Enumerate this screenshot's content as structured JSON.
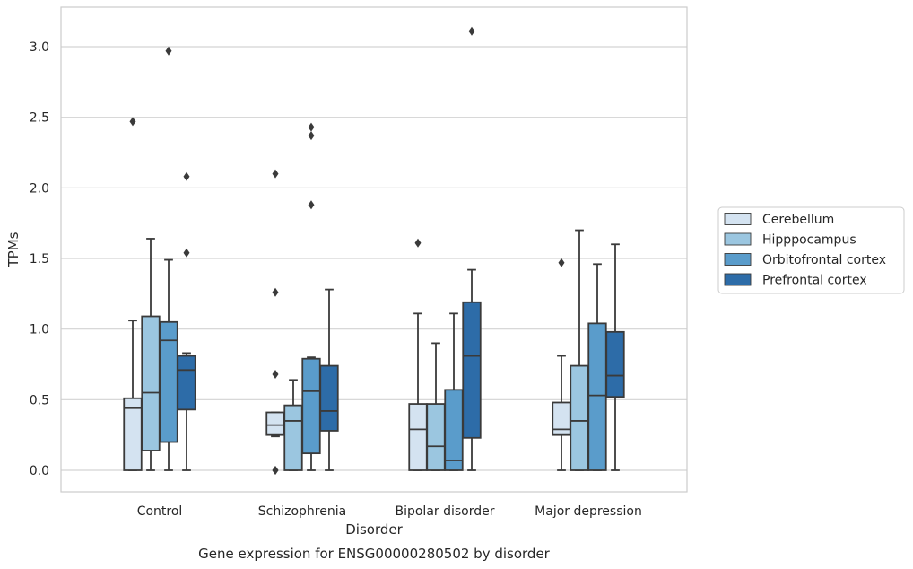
{
  "chart_data": {
    "type": "box",
    "caption": "Gene expression for ENSG00000280502 by disorder",
    "xlabel": "Disorder",
    "ylabel": "TPMs",
    "ylim": [
      -0.15,
      3.27
    ],
    "yticks": [
      0.0,
      0.5,
      1.0,
      1.5,
      2.0,
      2.5,
      3.0
    ],
    "ytick_labels": [
      "0.0",
      "0.5",
      "1.0",
      "1.5",
      "2.0",
      "2.5",
      "3.0"
    ],
    "grid": true,
    "legend_position": "right",
    "categories": [
      "Control",
      "Schizophrenia",
      "Bipolar disorder",
      "Major depression"
    ],
    "series": [
      {
        "name": "Cerebellum",
        "color": "#d4e3f1",
        "boxes": [
          {
            "whislo": 0.0,
            "q1": 0.0,
            "med": 0.44,
            "q3": 0.51,
            "whishi": 1.06,
            "fliers": [
              2.47
            ]
          },
          {
            "whislo": 0.24,
            "q1": 0.25,
            "med": 0.32,
            "q3": 0.41,
            "whishi": 0.41,
            "fliers": [
              0.0,
              0.0,
              0.68,
              1.26,
              2.1
            ]
          },
          {
            "whislo": 0.0,
            "q1": 0.0,
            "med": 0.29,
            "q3": 0.47,
            "whishi": 1.11,
            "fliers": [
              1.61
            ]
          },
          {
            "whislo": 0.0,
            "q1": 0.25,
            "med": 0.29,
            "q3": 0.48,
            "whishi": 0.81,
            "fliers": [
              1.47
            ]
          }
        ]
      },
      {
        "name": "Hipppocampus",
        "color": "#9bc6e0",
        "boxes": [
          {
            "whislo": 0.0,
            "q1": 0.14,
            "med": 0.55,
            "q3": 1.09,
            "whishi": 1.64,
            "fliers": []
          },
          {
            "whislo": 0.0,
            "q1": 0.0,
            "med": 0.35,
            "q3": 0.46,
            "whishi": 0.64,
            "fliers": []
          },
          {
            "whislo": 0.0,
            "q1": 0.0,
            "med": 0.17,
            "q3": 0.47,
            "whishi": 0.9,
            "fliers": []
          },
          {
            "whislo": 0.0,
            "q1": 0.0,
            "med": 0.35,
            "q3": 0.74,
            "whishi": 1.7,
            "fliers": []
          }
        ]
      },
      {
        "name": "Orbitofrontal cortex",
        "color": "#5a9ccb",
        "boxes": [
          {
            "whislo": 0.0,
            "q1": 0.2,
            "med": 0.92,
            "q3": 1.05,
            "whishi": 1.49,
            "fliers": [
              2.97
            ]
          },
          {
            "whislo": 0.0,
            "q1": 0.12,
            "med": 0.56,
            "q3": 0.79,
            "whishi": 0.8,
            "fliers": [
              1.88,
              2.37,
              2.43
            ]
          },
          {
            "whislo": 0.0,
            "q1": 0.0,
            "med": 0.07,
            "q3": 0.57,
            "whishi": 1.11,
            "fliers": []
          },
          {
            "whislo": 0.0,
            "q1": 0.0,
            "med": 0.53,
            "q3": 1.04,
            "whishi": 1.46,
            "fliers": []
          }
        ]
      },
      {
        "name": "Prefrontal cortex",
        "color": "#2d6ca8",
        "boxes": [
          {
            "whislo": 0.0,
            "q1": 0.43,
            "med": 0.71,
            "q3": 0.81,
            "whishi": 0.83,
            "fliers": [
              1.54,
              2.08
            ]
          },
          {
            "whislo": 0.0,
            "q1": 0.28,
            "med": 0.42,
            "q3": 0.74,
            "whishi": 1.28,
            "fliers": []
          },
          {
            "whislo": 0.0,
            "q1": 0.23,
            "med": 0.81,
            "q3": 1.19,
            "whishi": 1.42,
            "fliers": [
              3.11
            ]
          },
          {
            "whislo": 0.0,
            "q1": 0.52,
            "med": 0.67,
            "q3": 0.98,
            "whishi": 1.6,
            "fliers": []
          }
        ]
      }
    ]
  }
}
